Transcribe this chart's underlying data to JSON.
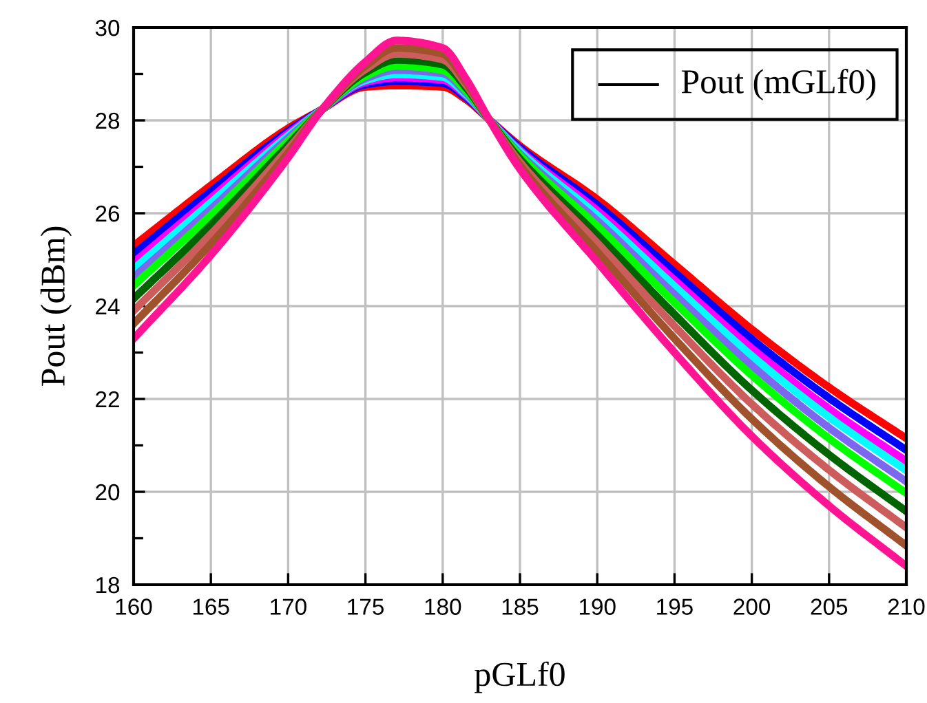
{
  "chart_data": {
    "type": "line",
    "xlabel": "pGLf0",
    "ylabel": "Pout (dBm)",
    "annotations": [
      "Pout (mGLf0)"
    ],
    "grid": true,
    "line_style": "solid",
    "marker": "none",
    "x": [
      160,
      165,
      170,
      172,
      175,
      177,
      180,
      181.5,
      183,
      185,
      190,
      195,
      200,
      205,
      210
    ],
    "xlim": [
      160,
      210
    ],
    "xticks": [
      160,
      165,
      170,
      175,
      180,
      185,
      190,
      195,
      200,
      205,
      210
    ],
    "ylim": [
      18,
      30
    ],
    "yticks": [
      18,
      {
        "value": 19,
        "label": null
      },
      20,
      {
        "value": 21,
        "label": null
      },
      22,
      {
        "value": 23,
        "label": null
      },
      24,
      {
        "value": 25,
        "label": null
      },
      26,
      {
        "value": 27,
        "label": null
      },
      28,
      {
        "value": 29,
        "label": null
      },
      30
    ],
    "series": [
      {
        "color": "#ff0000",
        "values": [
          25.3,
          26.6,
          27.83,
          28.2,
          28.72,
          28.75,
          28.72,
          28.45,
          28.02,
          27.45,
          26.3,
          24.9,
          23.5,
          22.25,
          21.15
        ]
      },
      {
        "color": "#0000ff",
        "values": [
          25.12,
          26.47,
          27.77,
          28.2,
          28.77,
          28.84,
          28.8,
          28.49,
          28.02,
          27.41,
          26.18,
          24.73,
          23.29,
          22.02,
          20.9
        ]
      },
      {
        "color": "#ff00ff",
        "values": [
          24.94,
          26.33,
          27.72,
          28.19,
          28.82,
          28.92,
          28.87,
          28.53,
          28.02,
          27.36,
          26.06,
          24.56,
          23.09,
          21.79,
          20.66
        ]
      },
      {
        "color": "#00ffff",
        "values": [
          24.8,
          26.23,
          27.67,
          28.19,
          28.86,
          28.99,
          28.93,
          28.56,
          28.02,
          27.33,
          25.96,
          24.43,
          22.93,
          21.61,
          20.46
        ]
      },
      {
        "color": "#7b68ee",
        "values": [
          24.62,
          26.09,
          27.62,
          28.18,
          28.9,
          29.08,
          29.01,
          28.6,
          28.02,
          27.28,
          25.84,
          24.25,
          22.72,
          21.38,
          20.22
        ]
      },
      {
        "color": "#00ff00",
        "values": [
          24.44,
          25.96,
          27.56,
          28.18,
          28.95,
          29.17,
          29.08,
          28.64,
          28.02,
          27.24,
          25.72,
          24.08,
          22.51,
          21.15,
          19.97
        ]
      },
      {
        "color": "#006400",
        "values": [
          24.16,
          25.75,
          27.47,
          28.17,
          29.03,
          29.3,
          29.2,
          28.71,
          28.02,
          27.17,
          25.53,
          23.82,
          22.19,
          20.8,
          19.58
        ]
      },
      {
        "color": "#cd5c5c",
        "values": [
          23.9,
          25.55,
          27.39,
          28.17,
          29.1,
          29.43,
          29.31,
          28.77,
          28.02,
          27.1,
          25.36,
          23.57,
          21.89,
          20.47,
          19.23
        ]
      },
      {
        "color": "#a0522d",
        "values": [
          23.62,
          25.34,
          27.3,
          28.16,
          29.17,
          29.56,
          29.43,
          28.83,
          28.02,
          27.03,
          25.17,
          23.3,
          21.57,
          20.11,
          18.84
        ]
      },
      {
        "color": "#ff1493",
        "values": [
          23.3,
          25.1,
          27.2,
          28.15,
          29.26,
          29.72,
          29.56,
          28.9,
          28.02,
          26.95,
          24.95,
          23.0,
          21.2,
          19.7,
          18.4
        ]
      }
    ]
  }
}
